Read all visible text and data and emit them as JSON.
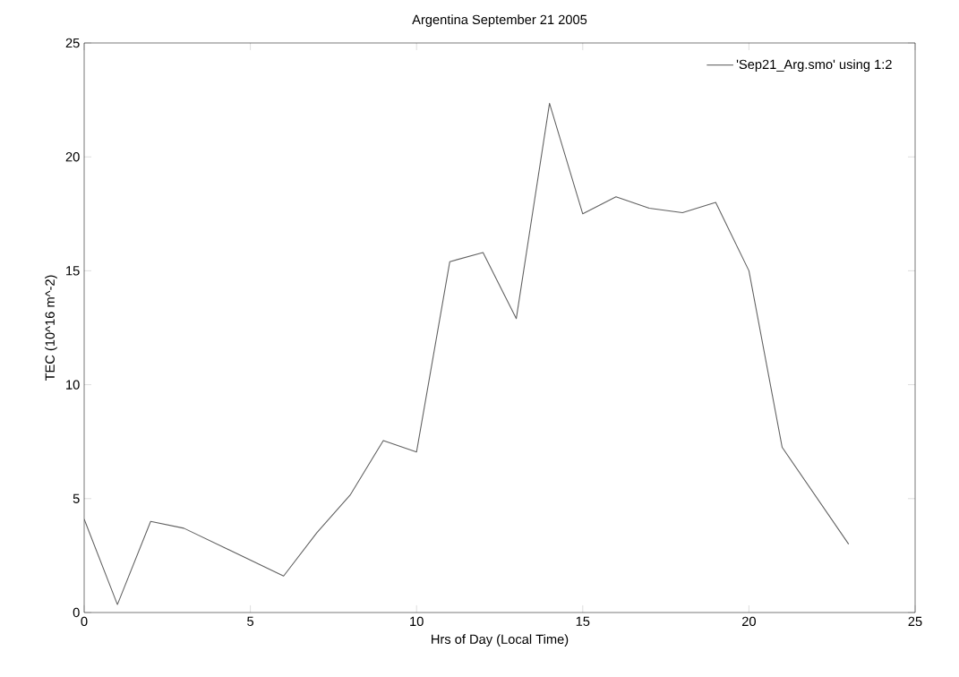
{
  "chart_data": {
    "type": "line",
    "title": "Argentina September 21 2005",
    "xlabel": "Hrs of Day (Local Time)",
    "ylabel": "TEC (10^16 m^-2)",
    "x": [
      0,
      1,
      2,
      3,
      6,
      7,
      8,
      9,
      10,
      11,
      12,
      13,
      14,
      15,
      16,
      17,
      18,
      19,
      20,
      21,
      23
    ],
    "series": [
      {
        "name": "'Sep21_Arg.smo' using 1:2",
        "color": "#606060",
        "values": [
          4.1,
          0.35,
          4.0,
          3.7,
          1.6,
          3.5,
          5.15,
          7.55,
          7.05,
          15.4,
          15.8,
          12.9,
          22.35,
          17.5,
          18.25,
          17.75,
          17.55,
          18.0,
          15.0,
          7.25,
          3.0
        ]
      }
    ],
    "xlim": [
      0,
      25
    ],
    "ylim": [
      0,
      25
    ],
    "xticks": [
      0,
      5,
      10,
      15,
      20,
      25
    ],
    "yticks": [
      0,
      5,
      10,
      15,
      20,
      25
    ],
    "grid": false,
    "legend": "top right",
    "marker": "none",
    "line_style": "solid"
  }
}
